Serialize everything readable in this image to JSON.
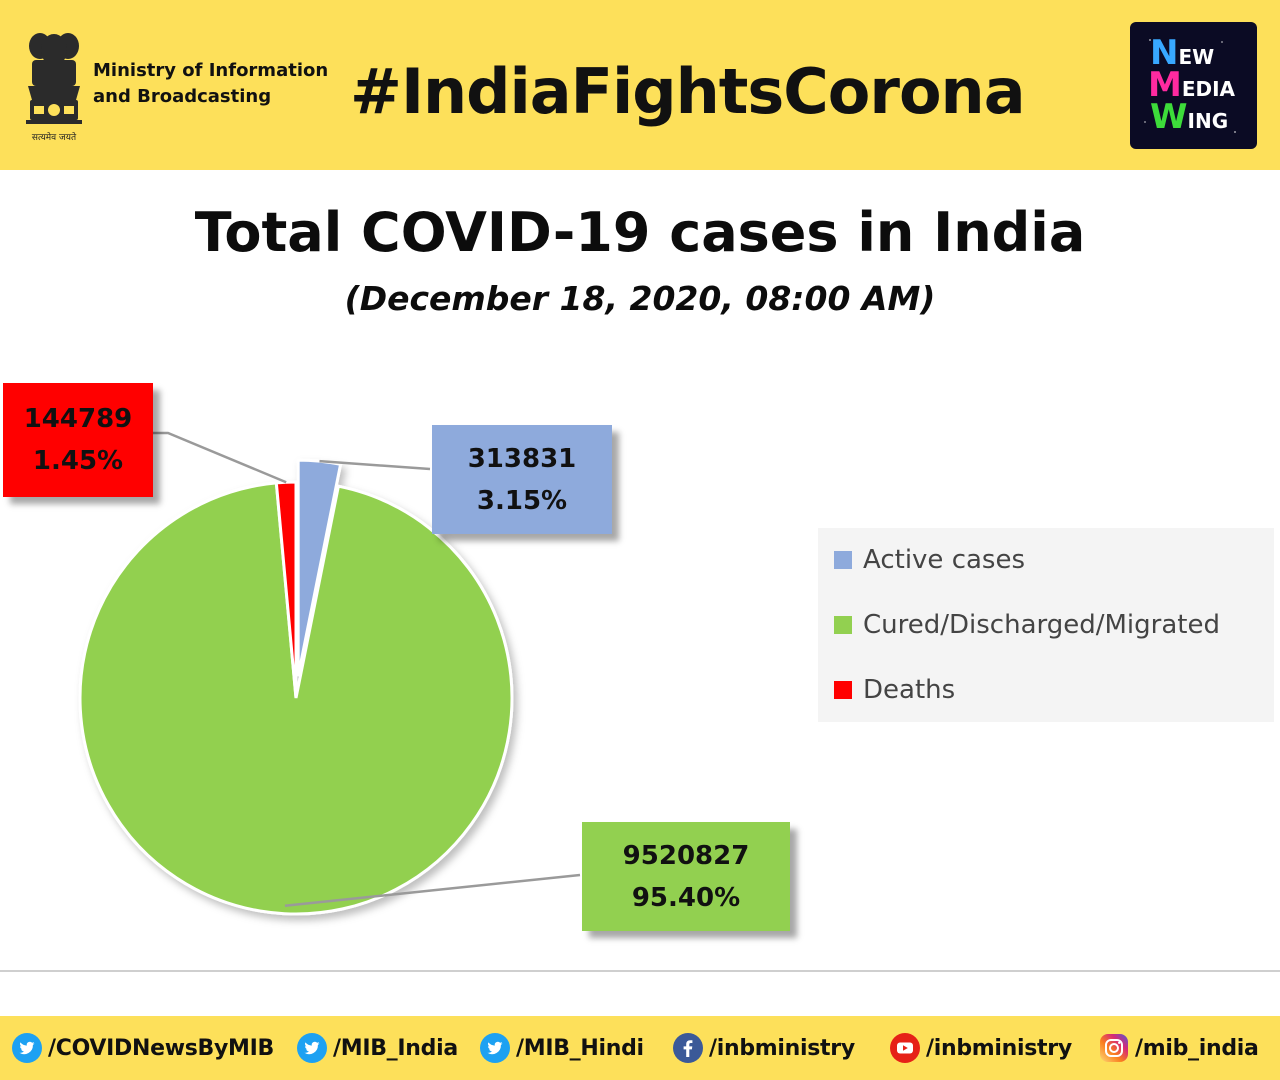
{
  "header": {
    "ministry_line1": "Ministry of Information",
    "ministry_line2": "and Broadcasting",
    "emblem_caption": "सत्यमेव जयते",
    "hashtag": "#IndiaFightsCorona",
    "logo_words": [
      "New",
      "Media",
      "Wing"
    ],
    "logo_initial_colors": [
      "#38a8ff",
      "#ff2aa0",
      "#3ddc3a"
    ]
  },
  "chart_data": {
    "type": "pie",
    "title": "Total COVID-19 cases in India",
    "subtitle": "(December 18, 2020, 08:00 AM)",
    "legend_position": "right",
    "slices": [
      {
        "name": "Active cases",
        "value": 313831,
        "percent_label": "3.15%",
        "color": "#8eaadc",
        "exploded": true
      },
      {
        "name": "Cured/Discharged/Migrated",
        "value": 9520827,
        "percent_label": "95.40%",
        "color": "#92d050",
        "exploded": false
      },
      {
        "name": "Deaths",
        "value": 144789,
        "percent_label": "1.45%",
        "color": "#ff0000",
        "exploded": false
      }
    ]
  },
  "footer": {
    "handles": [
      {
        "icon": "twitter-icon",
        "text": "/COVIDNewsByMIB"
      },
      {
        "icon": "twitter-icon",
        "text": "/MIB_India"
      },
      {
        "icon": "twitter-icon",
        "text": "/MIB_Hindi"
      },
      {
        "icon": "facebook-icon",
        "text": "/inbministry"
      },
      {
        "icon": "youtube-icon",
        "text": "/inbministry"
      },
      {
        "icon": "instagram-icon",
        "text": "/mib_india"
      }
    ]
  }
}
